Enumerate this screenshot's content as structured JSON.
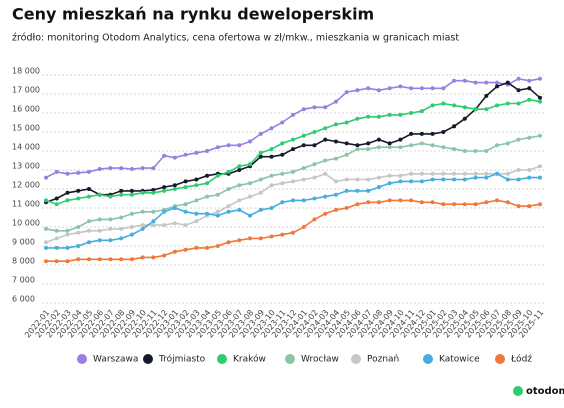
{
  "chart_data": {
    "type": "line",
    "title": "Ceny mieszkań na rynku deweloperskim",
    "subtitle": "źródło: monitoring Otodom Analytics, cena ofertowa w zł/mkw., mieszkania w granicach miast",
    "brand": "otodom",
    "categories": [
      "2022-01",
      "2022-02",
      "2022-03",
      "2022-04",
      "2022-05",
      "2022-06",
      "2022-07",
      "2022-08",
      "2022-09",
      "2022-10",
      "2022-11",
      "2022-12",
      "2023-01",
      "2023-02",
      "2023-03",
      "2023-04",
      "2023-05",
      "2023-06",
      "2023-07",
      "2023-08",
      "2023-09",
      "2023-10",
      "2023-11",
      "2023-12",
      "2024-01",
      "2024-02",
      "2024-03",
      "2024-04",
      "2024-05",
      "2024-06",
      "2024-07",
      "2024-08",
      "2024-09",
      "2024-10",
      "2024-11",
      "2024-12",
      "2025-01",
      "2025-02",
      "2025-03",
      "2025-04",
      "2025-05",
      "2025-06",
      "2025-07",
      "2025-08",
      "2025-09",
      "2025-10",
      "2025-11"
    ],
    "series": [
      {
        "name": "Warszawa",
        "color": "#9a7fe3",
        "values": [
          12600,
          12900,
          12800,
          12850,
          12900,
          13050,
          13100,
          13100,
          13050,
          13100,
          13100,
          13750,
          13650,
          13800,
          13900,
          14000,
          14200,
          14300,
          14300,
          14500,
          14900,
          15200,
          15500,
          15900,
          16200,
          16300,
          16300,
          16600,
          17100,
          17200,
          17300,
          17200,
          17300,
          17400,
          17300,
          17300,
          17300,
          17300,
          17700,
          17700,
          17600,
          17600,
          17600,
          17500,
          17800,
          17700,
          17800
        ]
      },
      {
        "name": "Trójmiasto",
        "color": "#141a2a",
        "values": [
          11300,
          11500,
          11800,
          11900,
          12000,
          11700,
          11700,
          11900,
          11900,
          11900,
          11950,
          12100,
          12200,
          12400,
          12500,
          12700,
          12800,
          12800,
          13000,
          13200,
          13700,
          13700,
          13800,
          14100,
          14300,
          14300,
          14600,
          14500,
          14400,
          14300,
          14400,
          14600,
          14400,
          14600,
          14900,
          14900,
          14900,
          15000,
          15300,
          15700,
          16200,
          16900,
          17400,
          17600,
          17200,
          17300,
          16800
        ]
      },
      {
        "name": "Kraków",
        "color": "#2ecb70",
        "values": [
          11400,
          11200,
          11400,
          11500,
          11600,
          11700,
          11600,
          11700,
          11700,
          11800,
          11800,
          11900,
          12000,
          12100,
          12200,
          12300,
          12700,
          12900,
          13200,
          13300,
          13900,
          14100,
          14400,
          14600,
          14800,
          15000,
          15200,
          15400,
          15500,
          15700,
          15800,
          15800,
          15900,
          15900,
          16000,
          16100,
          16400,
          16500,
          16400,
          16300,
          16200,
          16200,
          16400,
          16500,
          16500,
          16700,
          16600
        ]
      },
      {
        "name": "Wrocław",
        "color": "#8dc3a6",
        "values": [
          9900,
          9800,
          9800,
          10000,
          10300,
          10400,
          10400,
          10500,
          10700,
          10800,
          10800,
          10900,
          11100,
          11200,
          11400,
          11600,
          11700,
          12000,
          12200,
          12300,
          12500,
          12700,
          12800,
          12900,
          13100,
          13300,
          13500,
          13600,
          13800,
          14100,
          14100,
          14200,
          14200,
          14200,
          14300,
          14400,
          14300,
          14200,
          14100,
          14000,
          14000,
          14000,
          14300,
          14400,
          14600,
          14700,
          14800
        ]
      },
      {
        "name": "Poznań",
        "color": "#c6c6c6",
        "values": [
          9200,
          9400,
          9600,
          9700,
          9800,
          9800,
          9900,
          9900,
          10000,
          10100,
          10100,
          10100,
          10200,
          10100,
          10300,
          10600,
          10800,
          11100,
          11400,
          11600,
          11800,
          12200,
          12300,
          12400,
          12500,
          12600,
          12800,
          12400,
          12500,
          12500,
          12500,
          12600,
          12700,
          12700,
          12800,
          12800,
          12800,
          12800,
          12800,
          12800,
          12800,
          12800,
          12800,
          12800,
          13000,
          13000,
          13200
        ]
      },
      {
        "name": "Katowice",
        "color": "#45ade0",
        "values": [
          8900,
          8900,
          8900,
          9000,
          9200,
          9300,
          9300,
          9400,
          9600,
          9900,
          10300,
          10800,
          11000,
          10800,
          10700,
          10700,
          10600,
          10800,
          10900,
          10600,
          10900,
          11000,
          11300,
          11400,
          11400,
          11500,
          11600,
          11700,
          11900,
          11900,
          11900,
          12100,
          12300,
          12400,
          12400,
          12400,
          12500,
          12500,
          12500,
          12500,
          12600,
          12600,
          12800,
          12500,
          12500,
          12600,
          12600
        ]
      },
      {
        "name": "Łódź",
        "color": "#f07838",
        "values": [
          8200,
          8200,
          8200,
          8300,
          8300,
          8300,
          8300,
          8300,
          8300,
          8400,
          8400,
          8500,
          8700,
          8800,
          8900,
          8900,
          9000,
          9200,
          9300,
          9400,
          9400,
          9500,
          9600,
          9700,
          10000,
          10400,
          10700,
          10900,
          11000,
          11200,
          11300,
          11300,
          11400,
          11400,
          11400,
          11300,
          11300,
          11200,
          11200,
          11200,
          11200,
          11300,
          11400,
          11300,
          11100,
          11100,
          11200
        ]
      }
    ],
    "ylim": [
      6000,
      18000
    ],
    "yticks": [
      {
        "value": 6000,
        "label": "6 000"
      },
      {
        "value": 7000,
        "label": "7 000"
      },
      {
        "value": 8000,
        "label": "8 000"
      },
      {
        "value": 9000,
        "label": "9 000"
      },
      {
        "value": 10000,
        "label": "10 000"
      },
      {
        "value": 11000,
        "label": "11 000"
      },
      {
        "value": 12000,
        "label": "12 000"
      },
      {
        "value": 13000,
        "label": "13 000"
      },
      {
        "value": 14000,
        "label": "14 000"
      },
      {
        "value": 15000,
        "label": "15 000"
      },
      {
        "value": 16000,
        "label": "16 000"
      },
      {
        "value": 17000,
        "label": "17 000"
      },
      {
        "value": 18000,
        "label": "18 000"
      }
    ],
    "grid": true
  }
}
